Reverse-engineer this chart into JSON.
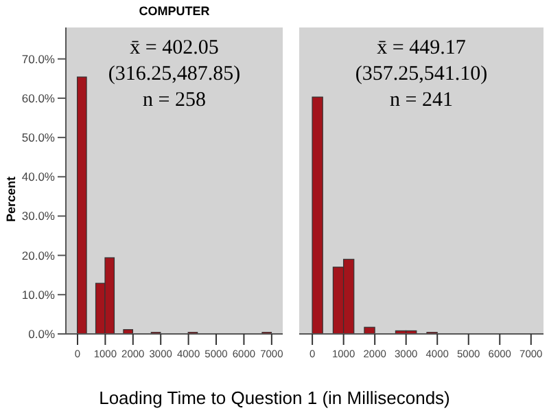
{
  "chart_data": [
    {
      "type": "histogram",
      "title": "COMPUTER",
      "ylabel": "Percent",
      "xlabel": "Loading Time to Question 1 (in Milliseconds)",
      "annotations": [
        "x̄ = 402.05",
        "(316.25,487.85)",
        "n = 258"
      ],
      "color": "#a3141c",
      "bins": [
        0,
        333.33,
        666.67,
        1000,
        1333.33,
        1666.67,
        2000,
        2333.33,
        2666.67,
        3000,
        3333.33,
        3666.67,
        4000,
        4333.33,
        4666.67,
        5000,
        5333.33,
        5666.67,
        6000,
        6333.33,
        6666.67,
        7000
      ],
      "values": [
        65.4,
        0,
        12.9,
        19.4,
        0,
        1.1,
        0,
        0,
        0.4,
        0,
        0,
        0,
        0.4,
        0,
        0,
        0,
        0,
        0,
        0,
        0,
        0.4
      ],
      "xlim": [
        -420,
        7400
      ],
      "xticks": [
        0,
        1000,
        2000,
        3000,
        4000,
        5000,
        6000,
        7000
      ],
      "ylim": [
        0,
        78
      ],
      "yticks": [
        {
          "value": 0,
          "label": "0.0%"
        },
        {
          "value": 10,
          "label": "10.0%"
        },
        {
          "value": 20,
          "label": "20.0%"
        },
        {
          "value": 30,
          "label": "30.0%"
        },
        {
          "value": 40,
          "label": "40.0%"
        },
        {
          "value": 50,
          "label": "50.0%"
        },
        {
          "value": 60,
          "label": "60.0%"
        },
        {
          "value": 70,
          "label": "70.0%"
        }
      ]
    },
    {
      "type": "histogram",
      "annotations": [
        "x̄ = 449.17",
        "(357.25,541.10)",
        "n = 241"
      ],
      "color": "#a3141c",
      "tick_labels": "x",
      "bins": [
        0,
        333.33,
        666.67,
        1000,
        1333.33,
        1666.67,
        2000,
        2333.33,
        2666.67,
        3000,
        3333.33,
        3666.67,
        4000,
        4333.33,
        4666.67,
        5000,
        5333.33,
        5666.67,
        6000,
        6333.33,
        6666.67,
        7000
      ],
      "values": [
        60.3,
        0,
        17.0,
        19.0,
        0,
        1.7,
        0,
        0,
        0.8,
        0.8,
        0,
        0.4,
        0,
        0,
        0,
        0,
        0,
        0,
        0,
        0,
        0
      ],
      "xlim": [
        -420,
        7400
      ],
      "xticks": [
        0,
        1000,
        2000,
        3000,
        4000,
        5000,
        6000,
        7000
      ],
      "ylim": [
        0,
        78
      ]
    }
  ]
}
